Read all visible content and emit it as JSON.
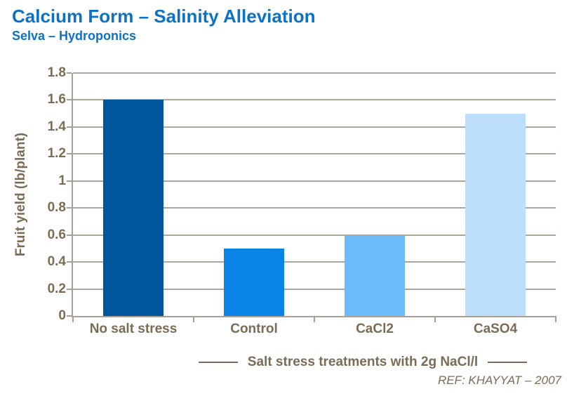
{
  "header": {
    "title": "Calcium Form – Salinity Alleviation",
    "subtitle": "Selva – Hydroponics"
  },
  "chart_data": {
    "type": "bar",
    "title": "Calcium Form – Salinity Alleviation",
    "subtitle": "Selva – Hydroponics",
    "categories": [
      "No salt stress",
      "Control",
      "CaCl2",
      "CaSO4"
    ],
    "values": [
      1.6,
      0.5,
      0.6,
      1.5
    ],
    "bar_colors": [
      "#00569B",
      "#0A84E6",
      "#6CBAF8",
      "#BCDEFA"
    ],
    "xlabel": "Salt stress treatments with 2g NaCl/l",
    "ylabel": "Fruit yield (lb/plant)",
    "ylim": [
      0,
      1.8
    ],
    "ytick_step": 0.2,
    "yticks": [
      "1.8",
      "1.6",
      "1.4",
      "1.2",
      "1",
      "0.8",
      "0.6",
      "0.4",
      "0.2",
      "0"
    ],
    "grid": true,
    "legend": false
  },
  "footer": {
    "reference": "REF: KHAYYAT – 2007"
  },
  "colors": {
    "title": "#0B72C6",
    "axis_text": "#7B6C56",
    "gridline": "#ADA59C",
    "axis_line": "#A8A096",
    "background": "#FFFFFF"
  }
}
